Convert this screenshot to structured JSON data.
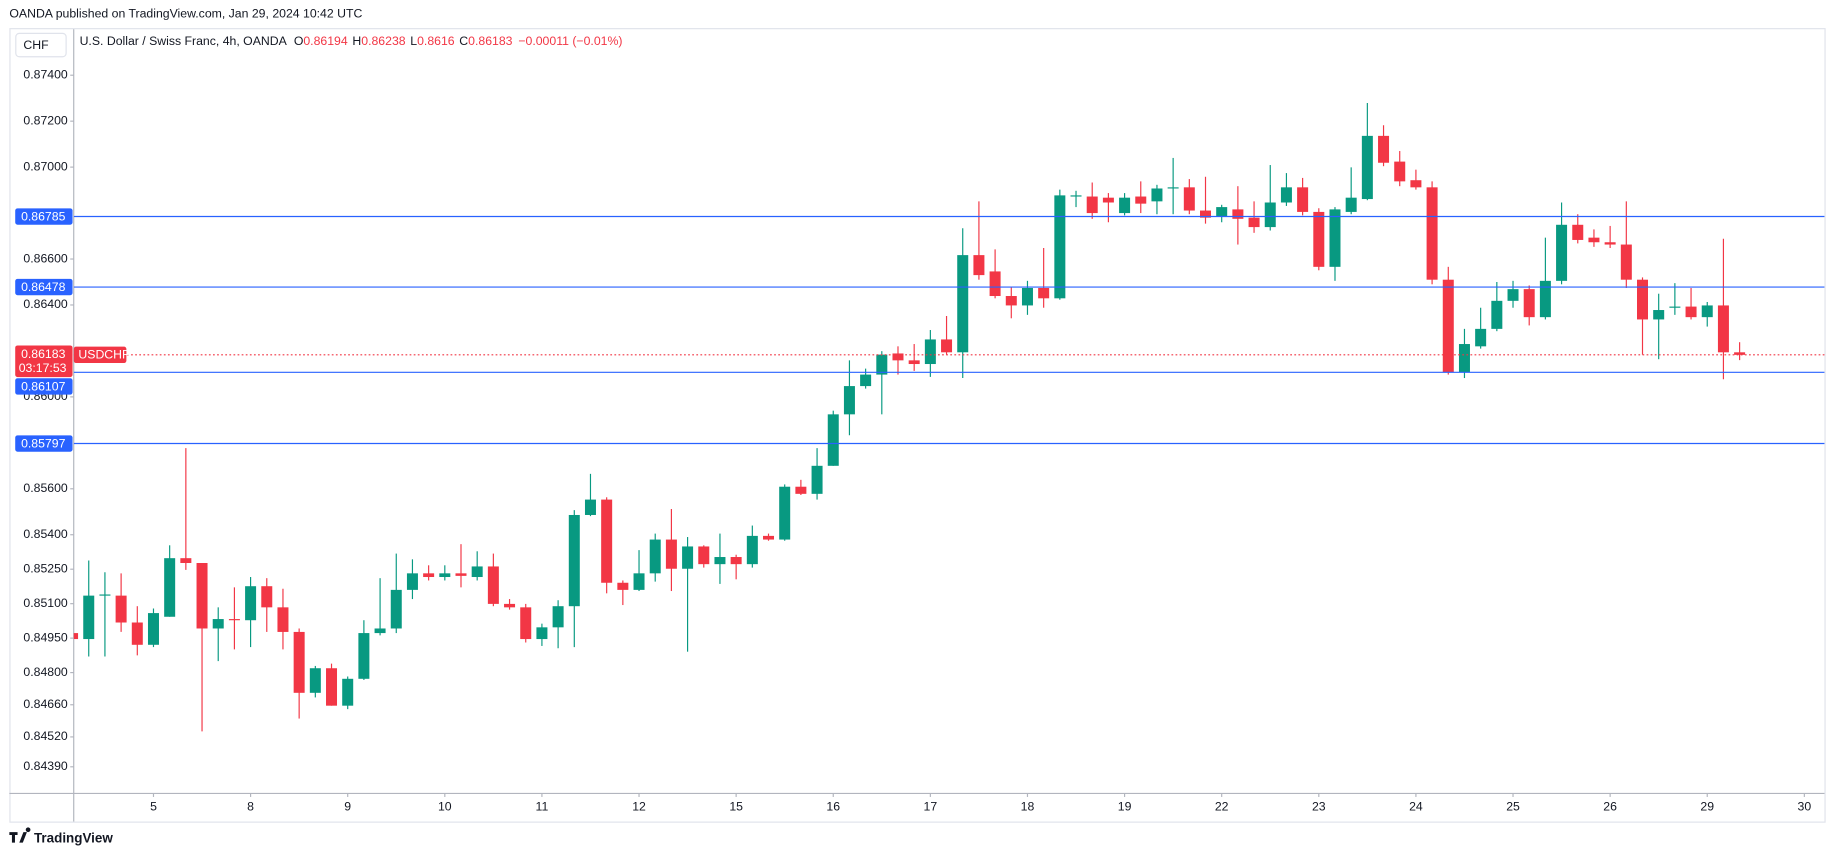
{
  "header": {
    "publisher": "OANDA published on TradingView.com, Jan 29, 2024 10:42 UTC",
    "currency": "CHF",
    "footer": "TradingView"
  },
  "chart_data": {
    "type": "candlestick",
    "title": "U.S. Dollar / Swiss Franc, 4h, OANDA",
    "ohlc_letters": [
      "O",
      "H",
      "L",
      "C"
    ],
    "change_label": "−0.00011 (−0.01%)",
    "symbol": "USDCHF",
    "countdown": "03:17:53",
    "up_color": "#089981",
    "down_color": "#f23645",
    "hline_color": "#2962ff",
    "grid": false,
    "categories": [
      null,
      null,
      null,
      null,
      null,
      "5",
      null,
      null,
      null,
      null,
      null,
      "8",
      null,
      null,
      null,
      null,
      null,
      "9",
      null,
      null,
      null,
      null,
      null,
      "10",
      null,
      null,
      null,
      null,
      null,
      "11",
      null,
      null,
      null,
      null,
      null,
      "12",
      null,
      null,
      null,
      null,
      null,
      "15",
      null,
      null,
      null,
      null,
      null,
      "16",
      null,
      null,
      null,
      null,
      null,
      "17",
      null,
      null,
      null,
      null,
      null,
      "18",
      null,
      null,
      null,
      null,
      null,
      "19",
      null,
      null,
      null,
      null,
      null,
      "22",
      null,
      null,
      null,
      null,
      null,
      "23",
      null,
      null,
      null,
      null,
      null,
      "24",
      null,
      null,
      null,
      null,
      null,
      "25",
      null,
      null,
      null,
      null,
      null,
      "26",
      null,
      null,
      null,
      null,
      null,
      "29",
      null,
      null,
      null,
      null,
      null,
      "30"
    ],
    "open": [
      0.84972,
      0.84946,
      0.85135,
      0.85135,
      0.85018,
      0.84921,
      0.85043,
      0.85298,
      0.85277,
      0.84992,
      0.85033,
      0.85028,
      0.85176,
      0.85084,
      0.84977,
      0.84712,
      0.84819,
      0.84656,
      0.84773,
      0.84972,
      0.84992,
      0.8516,
      0.85232,
      0.85216,
      0.85232,
      0.85216,
      0.85262,
      0.85099,
      0.85084,
      0.84946,
      0.84997,
      0.85089,
      0.85486,
      0.85553,
      0.85191,
      0.8516,
      0.85232,
      0.85379,
      0.85252,
      0.85349,
      0.85272,
      0.85303,
      0.85272,
      0.85395,
      0.85379,
      0.85609,
      0.85578,
      0.857,
      0.85924,
      0.86047,
      0.86097,
      0.86189,
      0.86159,
      0.86143,
      0.8625,
      0.86194,
      0.86617,
      0.86546,
      0.86439,
      0.86398,
      0.86474,
      0.86429,
      0.86872,
      0.86872,
      0.86867,
      0.868,
      0.86872,
      0.86851,
      0.86907,
      0.86912,
      0.86811,
      0.86785,
      0.86816,
      0.8678,
      0.86739,
      0.86846,
      0.86912,
      0.86805,
      0.86566,
      0.86805,
      0.86861,
      0.87136,
      0.87024,
      0.86943,
      0.86912,
      0.8651,
      0.86108,
      0.8622,
      0.86296,
      0.86418,
      0.86469,
      0.86347,
      0.86505,
      0.86749,
      0.86693,
      0.86673,
      0.86663,
      0.8651,
      0.86337,
      0.86388,
      0.86393,
      0.86347,
      0.86398,
      0.86194,
      null,
      null,
      null,
      null
    ],
    "high": [
      0.84982,
      0.85288,
      0.85237,
      0.85232,
      0.85089,
      0.85079,
      0.85354,
      0.85777,
      0.85277,
      0.85084,
      0.85171,
      0.85216,
      0.85211,
      0.85165,
      0.84992,
      0.84829,
      0.84839,
      0.84783,
      0.85028,
      0.85211,
      0.85318,
      0.85293,
      0.85267,
      0.85267,
      0.85359,
      0.85328,
      0.85318,
      0.8512,
      0.85099,
      0.85013,
      0.85115,
      0.85507,
      0.85665,
      0.85563,
      0.85201,
      0.85333,
      0.85405,
      0.85512,
      0.8539,
      0.85354,
      0.85405,
      0.85313,
      0.8544,
      0.85405,
      0.85619,
      0.85639,
      0.85777,
      0.8594,
      0.86159,
      0.86123,
      0.86199,
      0.8622,
      0.8623,
      0.86291,
      0.86352,
      0.86734,
      0.86851,
      0.86642,
      0.86479,
      0.86505,
      0.86648,
      0.86902,
      0.86897,
      0.86933,
      0.86887,
      0.86887,
      0.86938,
      0.86923,
      0.8704,
      0.86948,
      0.86958,
      0.86836,
      0.86917,
      0.86851,
      0.87009,
      0.86974,
      0.86953,
      0.86821,
      0.86826,
      0.86999,
      0.87279,
      0.87182,
      0.8707,
      0.86989,
      0.86938,
      0.86566,
      0.86296,
      0.86388,
      0.865,
      0.86505,
      0.86485,
      0.86693,
      0.86846,
      0.86795,
      0.86729,
      0.86744,
      0.86851,
      0.8652,
      0.86449,
      0.86495,
      0.86474,
      0.86413,
      0.86688,
      0.86238,
      null,
      null,
      null,
      null
    ],
    "low": [
      0.84936,
      0.8487,
      0.8487,
      0.84977,
      0.84875,
      0.84911,
      0.85043,
      0.85247,
      0.84544,
      0.8485,
      0.84901,
      0.84911,
      0.84977,
      0.84901,
      0.846,
      0.84692,
      0.84656,
      0.84641,
      0.84768,
      0.84962,
      0.84972,
      0.8512,
      0.85201,
      0.85201,
      0.85171,
      0.85201,
      0.85089,
      0.85074,
      0.84931,
      0.84916,
      0.84906,
      0.84911,
      0.85481,
      0.85145,
      0.85094,
      0.85155,
      0.85196,
      0.85155,
      0.84891,
      0.85257,
      0.85186,
      0.85206,
      0.85257,
      0.85374,
      0.85374,
      0.85573,
      0.85553,
      0.857,
      0.85833,
      0.86036,
      0.85924,
      0.86097,
      0.86113,
      0.86087,
      0.86184,
      0.86082,
      0.8651,
      0.86429,
      0.86342,
      0.86357,
      0.86388,
      0.86423,
      0.86826,
      0.86775,
      0.8676,
      0.8679,
      0.868,
      0.86795,
      0.86795,
      0.86795,
      0.86754,
      0.8676,
      0.86663,
      0.86714,
      0.86724,
      0.86831,
      0.8679,
      0.86551,
      0.86505,
      0.86795,
      0.86856,
      0.87004,
      0.86917,
      0.86902,
      0.8649,
      0.86097,
      0.86082,
      0.8621,
      0.86286,
      0.86388,
      0.86311,
      0.86337,
      0.8649,
      0.86668,
      0.86653,
      0.86648,
      0.86474,
      0.86184,
      0.86164,
      0.86357,
      0.86337,
      0.86306,
      0.86077,
      0.8616,
      null,
      null,
      null,
      null
    ],
    "close": [
      0.84946,
      0.85135,
      0.8514,
      0.85018,
      0.84921,
      0.85059,
      0.85298,
      0.85277,
      0.84992,
      0.85033,
      0.85028,
      0.85176,
      0.85084,
      0.84977,
      0.84712,
      0.84819,
      0.84656,
      0.84773,
      0.84972,
      0.84992,
      0.8516,
      0.85232,
      0.85216,
      0.85232,
      0.85221,
      0.85262,
      0.85099,
      0.85084,
      0.84946,
      0.84997,
      0.85089,
      0.85486,
      0.85553,
      0.85191,
      0.8516,
      0.85232,
      0.85379,
      0.85252,
      0.85349,
      0.85272,
      0.85303,
      0.85272,
      0.85395,
      0.85379,
      0.85609,
      0.85578,
      0.857,
      0.85924,
      0.86047,
      0.86097,
      0.86184,
      0.86159,
      0.86143,
      0.8625,
      0.86194,
      0.86617,
      0.8653,
      0.86439,
      0.86398,
      0.86474,
      0.86429,
      0.86877,
      0.86877,
      0.868,
      0.86846,
      0.86867,
      0.86841,
      0.86907,
      0.86912,
      0.86811,
      0.8678,
      0.86826,
      0.86775,
      0.86739,
      0.86846,
      0.86912,
      0.86805,
      0.86566,
      0.86816,
      0.86867,
      0.87136,
      0.87019,
      0.86938,
      0.86912,
      0.8651,
      0.86108,
      0.8623,
      0.86296,
      0.86418,
      0.86469,
      0.86347,
      0.86505,
      0.86749,
      0.86683,
      0.86673,
      0.86663,
      0.8651,
      0.86337,
      0.86378,
      0.86393,
      0.86347,
      0.86398,
      0.86194,
      0.86183,
      null,
      null,
      null,
      null
    ],
    "ylim": [
      0.84274,
      0.876
    ],
    "yticks": [
      {
        "value": 0.874,
        "label": "0.87400"
      },
      {
        "value": 0.872,
        "label": "0.87200"
      },
      {
        "value": 0.87,
        "label": "0.87000"
      },
      {
        "value": 0.866,
        "label": "0.86600"
      },
      {
        "value": 0.864,
        "label": "0.86400"
      },
      {
        "value": 0.86,
        "label": "0.86000"
      },
      {
        "value": 0.856,
        "label": "0.85600"
      },
      {
        "value": 0.854,
        "label": "0.85400"
      },
      {
        "value": 0.8525,
        "label": "0.85250"
      },
      {
        "value": 0.851,
        "label": "0.85100"
      },
      {
        "value": 0.8495,
        "label": "0.84950"
      },
      {
        "value": 0.848,
        "label": "0.84800"
      },
      {
        "value": 0.8466,
        "label": "0.84660"
      },
      {
        "value": 0.8452,
        "label": "0.84520"
      },
      {
        "value": 0.8439,
        "label": "0.84390"
      }
    ],
    "hlines": [
      0.86785,
      0.86478,
      0.86107,
      0.85797
    ]
  }
}
